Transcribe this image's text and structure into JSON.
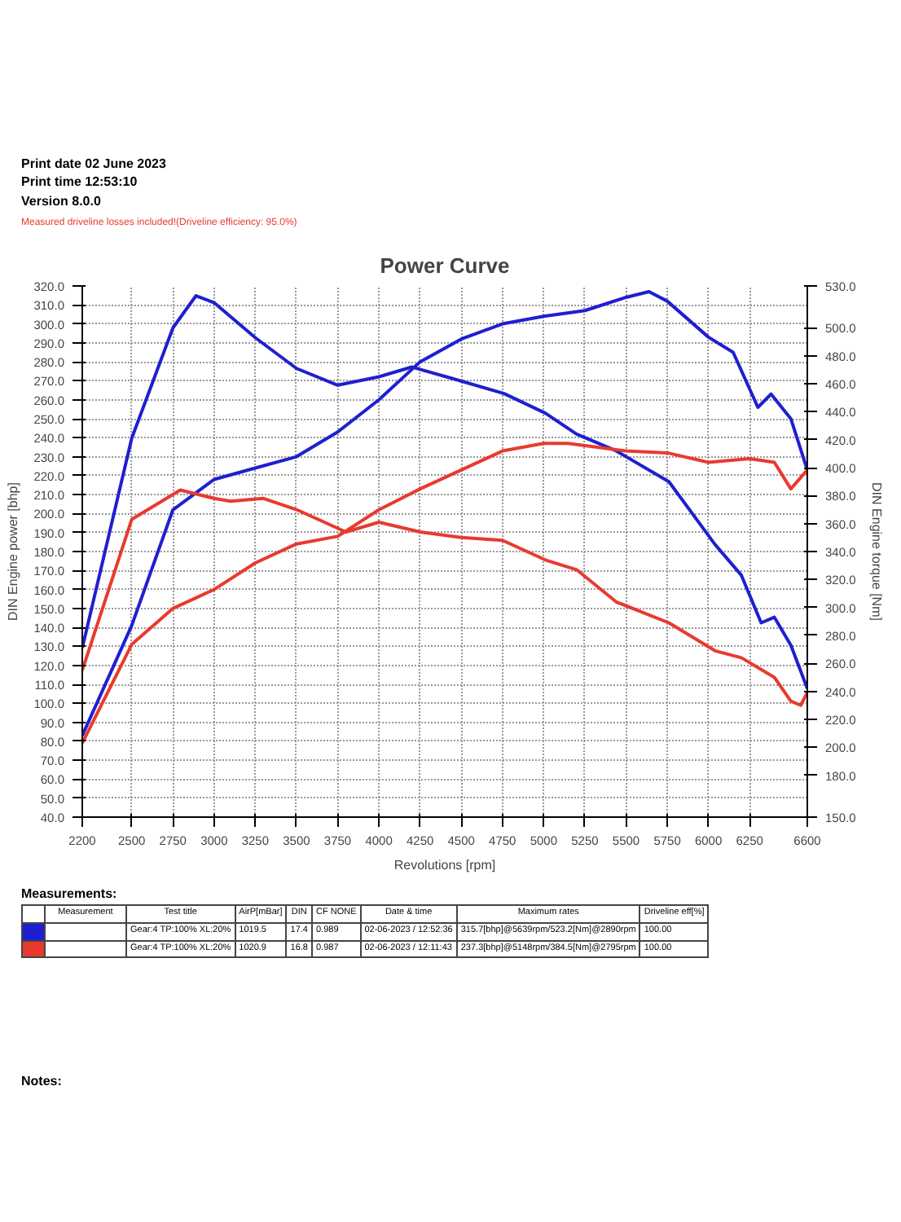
{
  "chart_data": {
    "type": "line",
    "title": "Power Curve",
    "xlabel": "Revolutions [rpm]",
    "ylabel": "DIN Engine power [bhp]",
    "y2label": "DIN Engine torque [Nm]",
    "annotations": [
      "Print date   02 June 2023",
      "Print time   12:53:10",
      "Version   8.0.0",
      "Measured driveline losses included!(Driveline efficiency: 95.0%)",
      "Measurements:",
      "Notes:",
      "Measurement",
      "Test title",
      "AirP[mBar]",
      "DIN",
      "CF NONE",
      "Date & time",
      "Maximum rates",
      "Driveline eff[%]",
      "Gear:4 TP:100% XL:20%",
      "1019.5",
      "17.4",
      "0.989",
      "02-06-2023 / 12:52:36",
      "315.7[bhp]@5639rpm/523.2[Nm]@2890rpm",
      "100.00",
      "Gear:4 TP:100% XL:20%",
      "1020.9",
      "16.8",
      "0.987",
      "02-06-2023 / 12:11:43",
      "237.3[bhp]@5148rpm/384.5[Nm]@2795rpm",
      "100.00"
    ],
    "xlim": [
      2200,
      6600
    ],
    "xticks": [
      2200,
      2500,
      2750,
      3000,
      3250,
      3500,
      3750,
      4000,
      4250,
      4500,
      4750,
      5000,
      5250,
      5500,
      5750,
      6000,
      6250,
      6600
    ],
    "ylim": [
      40,
      320
    ],
    "yticks": [
      {
        "value": 40,
        "label": "40.0"
      },
      {
        "value": 50,
        "label": "50.0"
      },
      {
        "value": 60,
        "label": "60.0"
      },
      {
        "value": 70,
        "label": "70.0"
      },
      {
        "value": 80,
        "label": "80.0"
      },
      {
        "value": 90,
        "label": "90.0"
      },
      {
        "value": 100,
        "label": "100.0"
      },
      {
        "value": 110,
        "label": "110.0"
      },
      {
        "value": 120,
        "label": "120.0"
      },
      {
        "value": 130,
        "label": "130.0"
      },
      {
        "value": 140,
        "label": "140.0"
      },
      {
        "value": 150,
        "label": "150.0"
      },
      {
        "value": 160,
        "label": "160.0"
      },
      {
        "value": 170,
        "label": "170.0"
      },
      {
        "value": 180,
        "label": "180.0"
      },
      {
        "value": 190,
        "label": "190.0"
      },
      {
        "value": 200,
        "label": "200.0"
      },
      {
        "value": 210,
        "label": "210.0"
      },
      {
        "value": 220,
        "label": "220.0"
      },
      {
        "value": 230,
        "label": "230.0"
      },
      {
        "value": 240,
        "label": "240.0"
      },
      {
        "value": 250,
        "label": "250.0"
      },
      {
        "value": 260,
        "label": "260.0"
      },
      {
        "value": 270,
        "label": "270.0"
      },
      {
        "value": 280,
        "label": "280.0"
      },
      {
        "value": 290,
        "label": "290.0"
      },
      {
        "value": 300,
        "label": "300.0"
      },
      {
        "value": 310,
        "label": "310.0"
      },
      {
        "value": 320,
        "label": "320.0"
      }
    ],
    "y2lim": [
      150,
      530
    ],
    "y2ticks": [
      {
        "value": 150,
        "label": "150.0"
      },
      {
        "value": 180,
        "label": "180.0"
      },
      {
        "value": 200,
        "label": "200.0"
      },
      {
        "value": 220,
        "label": "220.0"
      },
      {
        "value": 240,
        "label": "240.0"
      },
      {
        "value": 260,
        "label": "260.0"
      },
      {
        "value": 280,
        "label": "280.0"
      },
      {
        "value": 300,
        "label": "300.0"
      },
      {
        "value": 320,
        "label": "320.0"
      },
      {
        "value": 340,
        "label": "340.0"
      },
      {
        "value": 360,
        "label": "360.0"
      },
      {
        "value": 380,
        "label": "380.0"
      },
      {
        "value": 400,
        "label": "400.0"
      },
      {
        "value": 420,
        "label": "420.0"
      },
      {
        "value": 440,
        "label": "440.0"
      },
      {
        "value": 460,
        "label": "460.0"
      },
      {
        "value": 480,
        "label": "480.0"
      },
      {
        "value": 500,
        "label": "500.0"
      },
      {
        "value": 530,
        "label": "530.0"
      }
    ],
    "grid": true,
    "line_style": "solid",
    "series": [
      {
        "color": "#1f1fd0",
        "x": [
          2200,
          2500,
          2750,
          3000,
          3250,
          3500,
          3750,
          4000,
          4250,
          4500,
          4750,
          5000,
          5250,
          5500,
          5639,
          5750,
          6000,
          6150,
          6300,
          6380,
          6500,
          6600
        ],
        "values": [
          83,
          141,
          202,
          218,
          224,
          230,
          243,
          260,
          280,
          292,
          300,
          304,
          307,
          314,
          317,
          312,
          293,
          285,
          256,
          263,
          250,
          223
        ]
      },
      {
        "color": "#1f1fd0",
        "axis": "y2",
        "x": [
          2200,
          2500,
          2750,
          2890,
          3000,
          3250,
          3500,
          3750,
          4000,
          4200,
          4440,
          4760,
          5010,
          5200,
          5440,
          5760,
          6040,
          6200,
          6320,
          6400,
          6500,
          6600
        ],
        "values": [
          271,
          421,
          500,
          523,
          518,
          493,
          471,
          459,
          465,
          472,
          464,
          453,
          439,
          424,
          412,
          390,
          345,
          323,
          289,
          293,
          273,
          242
        ]
      },
      {
        "color": "#e83a2f",
        "x": [
          2200,
          2500,
          2750,
          3000,
          3250,
          3500,
          3750,
          4000,
          4250,
          4500,
          4750,
          5000,
          5148,
          5500,
          5750,
          6000,
          6250,
          6400,
          6500,
          6600
        ],
        "values": [
          79,
          131,
          150,
          160,
          174,
          184,
          188,
          202,
          213,
          223,
          233,
          237,
          237,
          233,
          232,
          227,
          229,
          227,
          213,
          223
        ]
      },
      {
        "color": "#e83a2f",
        "axis": "y2",
        "x": [
          2200,
          2500,
          2795,
          3000,
          3100,
          3300,
          3500,
          3800,
          4000,
          4250,
          4500,
          4750,
          5010,
          5200,
          5440,
          5760,
          6040,
          6200,
          6400,
          6500,
          6560,
          6600
        ],
        "values": [
          255,
          363,
          384,
          378,
          376,
          378,
          370,
          354,
          361,
          354,
          350,
          348,
          334,
          327,
          304,
          289,
          269,
          264,
          250,
          233,
          230,
          239
        ]
      }
    ]
  }
}
